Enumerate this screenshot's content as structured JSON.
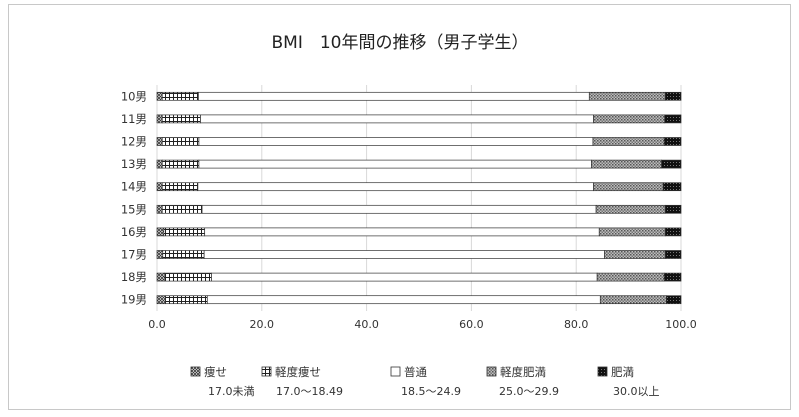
{
  "chart_data": {
    "type": "bar",
    "orientation": "horizontal",
    "stacked": "percent",
    "title": "BMI　10年間の推移（男子学生）",
    "categories": [
      "10男",
      "11男",
      "12男",
      "13男",
      "14男",
      "15男",
      "16男",
      "17男",
      "18男",
      "19男"
    ],
    "series": [
      {
        "name": "痩せ",
        "sublabel": "17.0未満",
        "pattern": "diag-cross",
        "values": [
          1.0,
          1.0,
          1.0,
          1.0,
          1.0,
          1.0,
          1.3,
          1.1,
          1.4,
          1.6
        ]
      },
      {
        "name": "軽度痩せ",
        "sublabel": "17.0～18.49",
        "pattern": "grid",
        "values": [
          6.9,
          7.3,
          7.0,
          7.0,
          6.8,
          7.6,
          7.8,
          7.9,
          9.0,
          8.0
        ]
      },
      {
        "name": "普通",
        "sublabel": "18.5～24.9",
        "pattern": "white",
        "values": [
          74.6,
          75.0,
          75.2,
          74.9,
          75.5,
          75.2,
          75.3,
          76.4,
          73.6,
          75.0
        ]
      },
      {
        "name": "軽度肥満",
        "sublabel": "25.0～29.9",
        "pattern": "dots",
        "values": [
          14.5,
          13.6,
          13.6,
          13.4,
          13.3,
          13.2,
          12.6,
          11.6,
          12.8,
          12.6
        ]
      },
      {
        "name": "肥満",
        "sublabel": "30.0以上",
        "pattern": "dark",
        "values": [
          3.0,
          3.1,
          3.2,
          3.7,
          3.4,
          3.0,
          3.0,
          3.0,
          3.2,
          2.8
        ]
      }
    ],
    "xlim": [
      0,
      100
    ],
    "xticks": [
      "0.0",
      "20.0",
      "40.0",
      "60.0",
      "80.0",
      "100.0"
    ],
    "grid": "vertical",
    "legend_position": "bottom"
  }
}
